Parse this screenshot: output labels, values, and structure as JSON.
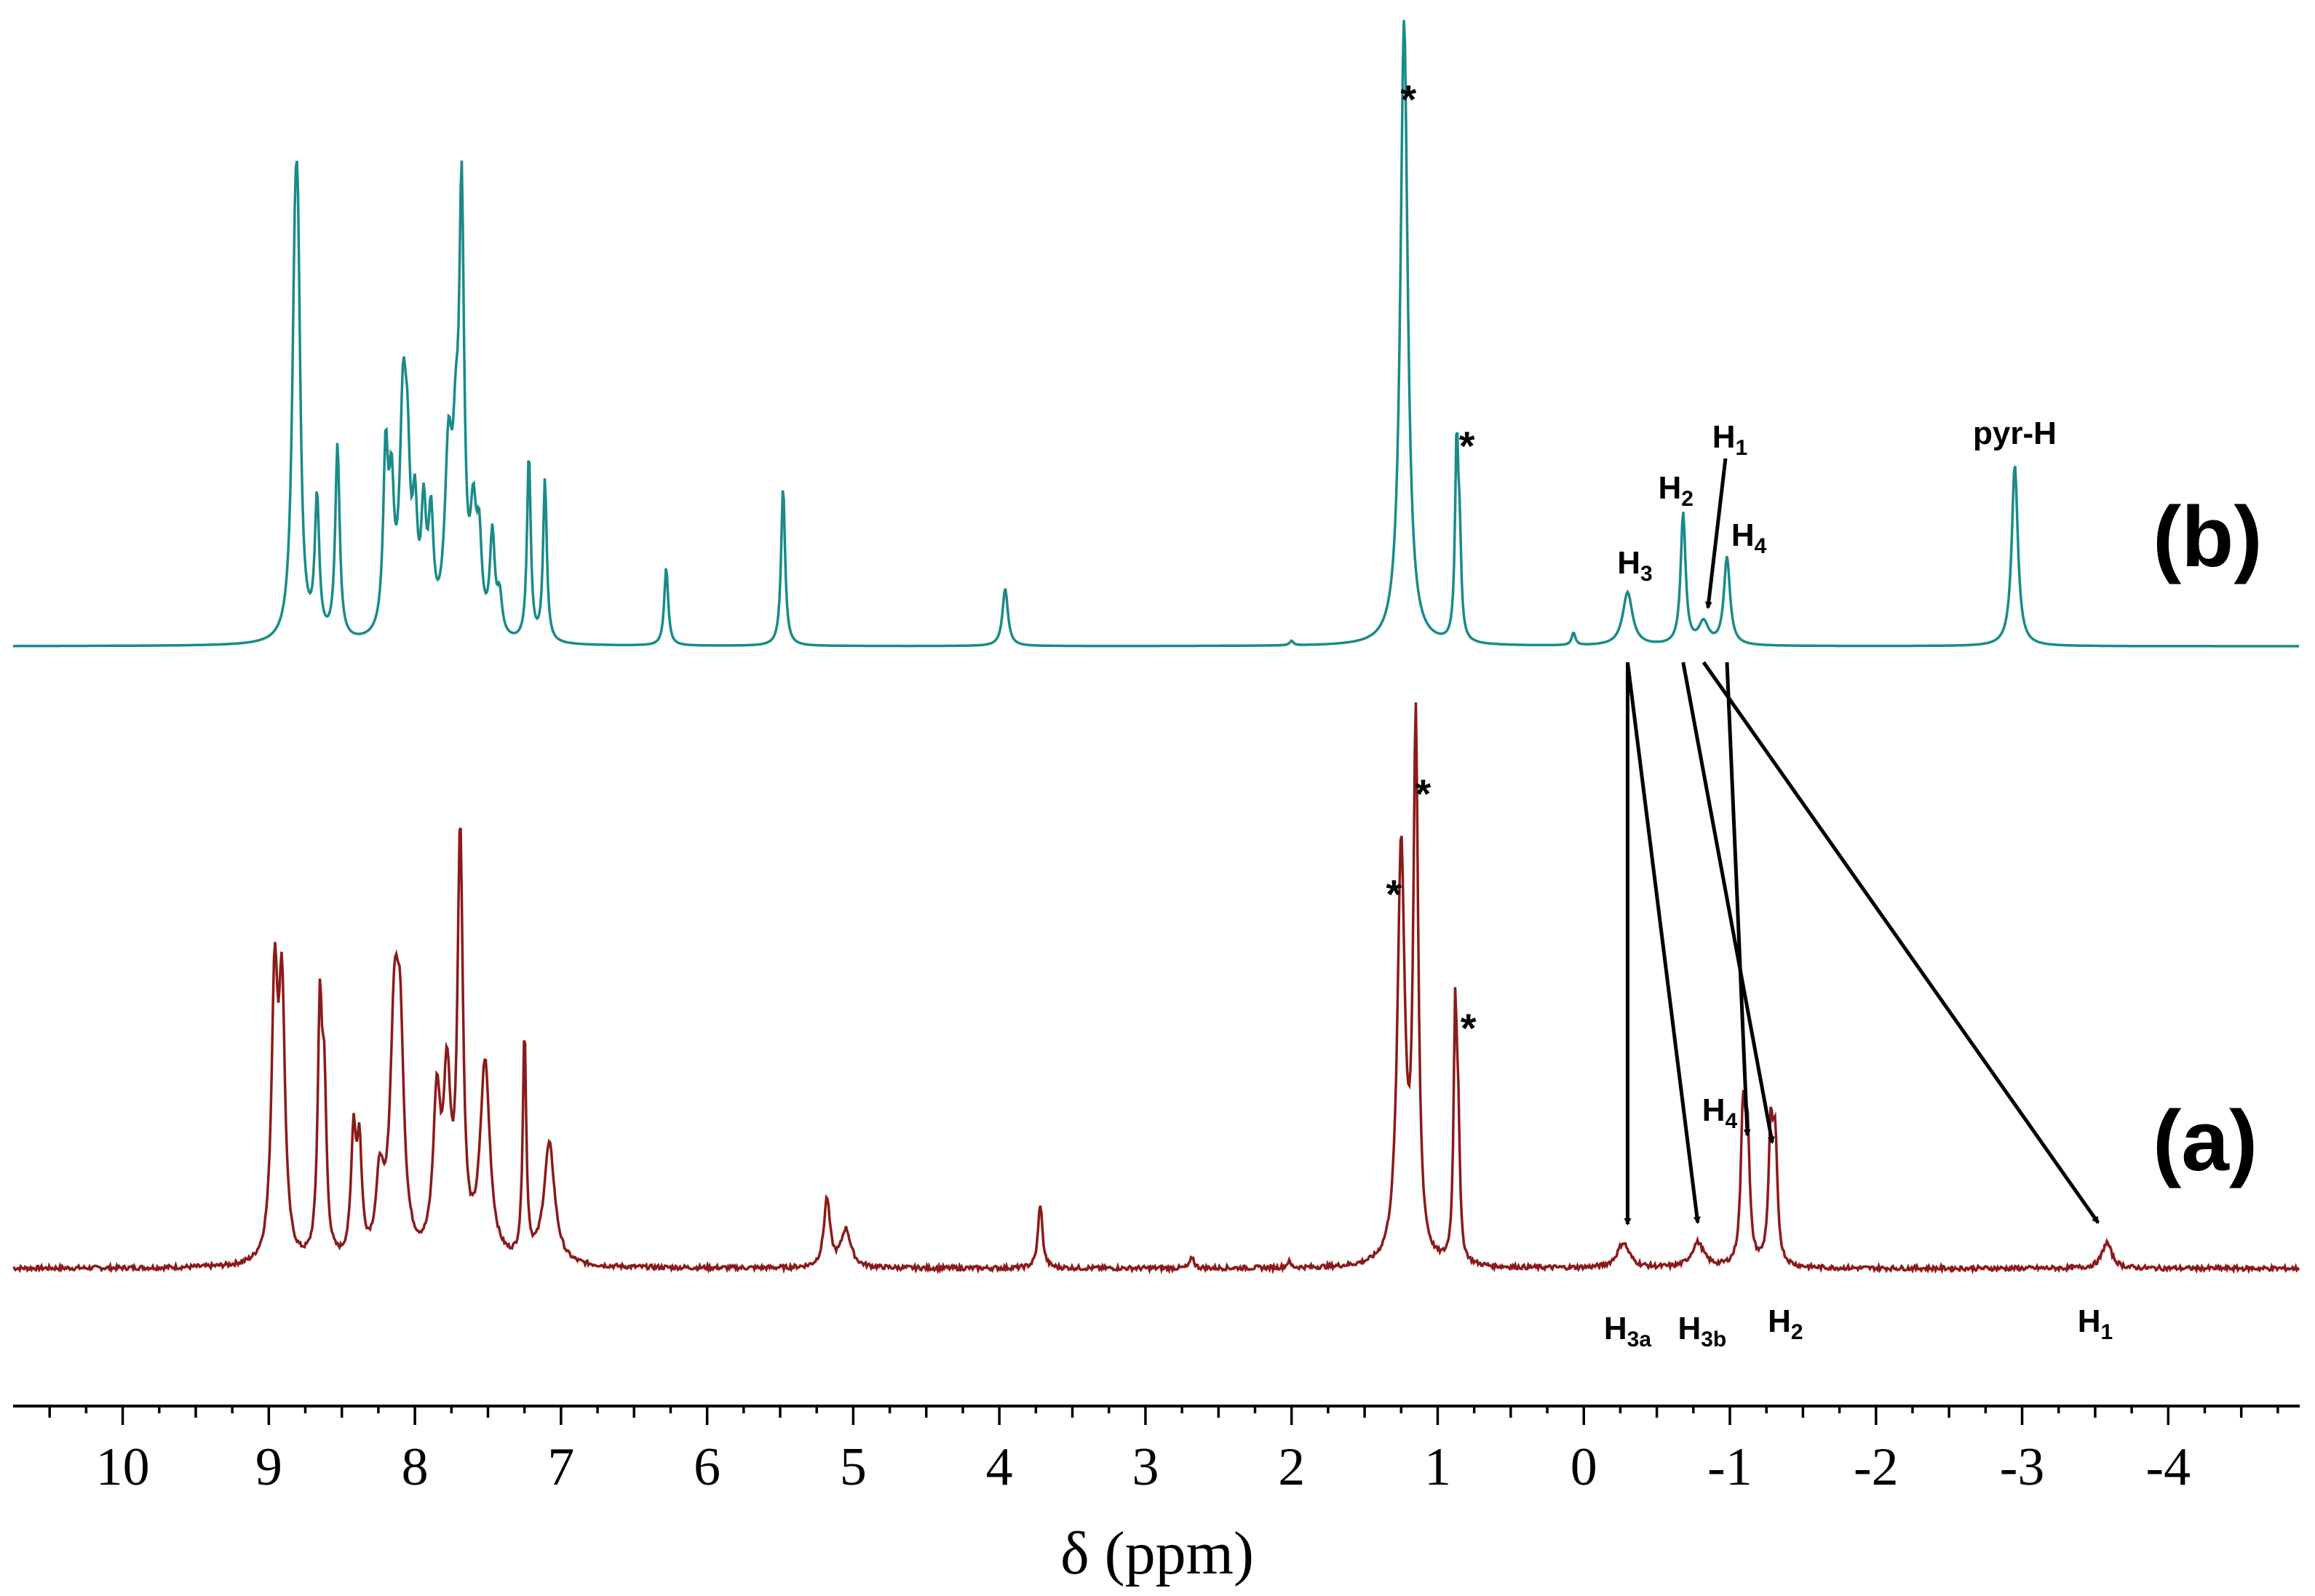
{
  "chart_data": {
    "type": "line",
    "title": "",
    "xlabel": "δ (ppm)",
    "ylabel": "",
    "xlim": [
      10.75,
      -4.9
    ],
    "x_direction": "reversed",
    "xticks": [
      10,
      9,
      8,
      7,
      6,
      5,
      4,
      3,
      2,
      1,
      0,
      -1,
      -2,
      -3,
      -4
    ],
    "xtick_labels": [
      "10",
      "9",
      "8",
      "7",
      "6",
      "5",
      "4",
      "3",
      "2",
      "1",
      "0",
      "-1",
      "-2",
      "-3",
      "-4"
    ],
    "grid": false,
    "series": [
      {
        "name": "(b)",
        "color": "#1a8a8a",
        "peaks": [
          {
            "x": 8.82,
            "h": 0.52,
            "w": 0.025
          },
          {
            "x": 8.8,
            "h": 0.4,
            "w": 0.02
          },
          {
            "x": 8.67,
            "h": 0.22,
            "w": 0.018
          },
          {
            "x": 8.53,
            "h": 0.31,
            "w": 0.018
          },
          {
            "x": 8.2,
            "h": 0.28,
            "w": 0.02
          },
          {
            "x": 8.16,
            "h": 0.2,
            "w": 0.02
          },
          {
            "x": 8.08,
            "h": 0.36,
            "w": 0.028
          },
          {
            "x": 8.05,
            "h": 0.18,
            "w": 0.02
          },
          {
            "x": 8.0,
            "h": 0.17,
            "w": 0.02
          },
          {
            "x": 7.94,
            "h": 0.18,
            "w": 0.02
          },
          {
            "x": 7.89,
            "h": 0.17,
            "w": 0.02
          },
          {
            "x": 7.77,
            "h": 0.27,
            "w": 0.03
          },
          {
            "x": 7.72,
            "h": 0.22,
            "w": 0.025
          },
          {
            "x": 7.68,
            "h": 0.66,
            "w": 0.02
          },
          {
            "x": 7.6,
            "h": 0.17,
            "w": 0.025
          },
          {
            "x": 7.56,
            "h": 0.13,
            "w": 0.02
          },
          {
            "x": 7.47,
            "h": 0.16,
            "w": 0.02
          },
          {
            "x": 7.42,
            "h": 0.06,
            "w": 0.02
          },
          {
            "x": 7.22,
            "h": 0.3,
            "w": 0.015
          },
          {
            "x": 7.11,
            "h": 0.26,
            "w": 0.015
          },
          {
            "x": 6.28,
            "h": 0.125,
            "w": 0.016
          },
          {
            "x": 5.48,
            "h": 0.255,
            "w": 0.016
          },
          {
            "x": 3.96,
            "h": 0.092,
            "w": 0.022
          },
          {
            "x": 2.0,
            "h": 0.007,
            "w": 0.015
          },
          {
            "x": 1.23,
            "h": 1.0,
            "w": 0.03
          },
          {
            "x": 0.87,
            "h": 0.31,
            "w": 0.013
          },
          {
            "x": 0.85,
            "h": 0.14,
            "w": 0.013
          },
          {
            "x": 0.07,
            "h": 0.02,
            "w": 0.015
          },
          {
            "x": -0.3,
            "h": 0.085,
            "w": 0.04
          },
          {
            "x": -0.68,
            "h": 0.21,
            "w": 0.02
          },
          {
            "x": -0.82,
            "h": 0.035,
            "w": 0.04
          },
          {
            "x": -0.98,
            "h": 0.14,
            "w": 0.025
          },
          {
            "x": -2.95,
            "h": 0.29,
            "w": 0.025
          }
        ]
      },
      {
        "name": "(a)",
        "color": "#8b1a1a",
        "peaks": [
          {
            "x": 8.96,
            "h": 0.36,
            "w": 0.025
          },
          {
            "x": 8.91,
            "h": 0.34,
            "w": 0.025
          },
          {
            "x": 8.65,
            "h": 0.32,
            "w": 0.018
          },
          {
            "x": 8.62,
            "h": 0.2,
            "w": 0.018
          },
          {
            "x": 8.42,
            "h": 0.16,
            "w": 0.02
          },
          {
            "x": 8.38,
            "h": 0.14,
            "w": 0.02
          },
          {
            "x": 8.24,
            "h": 0.1,
            "w": 0.03
          },
          {
            "x": 8.14,
            "h": 0.3,
            "w": 0.035
          },
          {
            "x": 8.1,
            "h": 0.24,
            "w": 0.03
          },
          {
            "x": 7.85,
            "h": 0.2,
            "w": 0.03
          },
          {
            "x": 7.78,
            "h": 0.22,
            "w": 0.03
          },
          {
            "x": 7.69,
            "h": 0.55,
            "w": 0.022
          },
          {
            "x": 7.52,
            "h": 0.26,
            "w": 0.04
          },
          {
            "x": 7.25,
            "h": 0.3,
            "w": 0.014
          },
          {
            "x": 7.08,
            "h": 0.16,
            "w": 0.045
          },
          {
            "x": 5.18,
            "h": 0.09,
            "w": 0.025
          },
          {
            "x": 5.05,
            "h": 0.05,
            "w": 0.04
          },
          {
            "x": 3.72,
            "h": 0.085,
            "w": 0.018
          },
          {
            "x": 2.68,
            "h": 0.015,
            "w": 0.015
          },
          {
            "x": 2.02,
            "h": 0.008,
            "w": 0.015
          },
          {
            "x": 1.25,
            "h": 0.55,
            "w": 0.03
          },
          {
            "x": 1.15,
            "h": 0.7,
            "w": 0.02
          },
          {
            "x": 0.88,
            "h": 0.32,
            "w": 0.013
          },
          {
            "x": 0.86,
            "h": 0.16,
            "w": 0.013
          },
          {
            "x": -0.27,
            "h": 0.033,
            "w": 0.05
          },
          {
            "x": -0.78,
            "h": 0.033,
            "w": 0.05
          },
          {
            "x": -1.09,
            "h": 0.19,
            "w": 0.018
          },
          {
            "x": -1.12,
            "h": 0.16,
            "w": 0.018
          },
          {
            "x": -1.28,
            "h": 0.17,
            "w": 0.018
          },
          {
            "x": -1.31,
            "h": 0.15,
            "w": 0.018
          },
          {
            "x": -3.58,
            "h": 0.034,
            "w": 0.04
          }
        ]
      }
    ],
    "stars_b": [
      1.2,
      0.8
    ],
    "stars_a": [
      1.3,
      1.1,
      0.79
    ],
    "labels_b": [
      {
        "key": "H3",
        "text": "H",
        "sub": "3",
        "x": -0.35
      },
      {
        "key": "H2",
        "text": "H",
        "sub": "2",
        "x": -0.63
      },
      {
        "key": "H1",
        "text": "H",
        "sub": "1",
        "x": -1.0
      },
      {
        "key": "H4",
        "text": "H",
        "sub": "4",
        "x": -1.13
      },
      {
        "key": "pyr",
        "text": "pyr-H",
        "sub": "",
        "x": -2.95
      }
    ],
    "labels_a": [
      {
        "key": "H3a",
        "text": "H",
        "sub": "3a",
        "x": -0.3
      },
      {
        "key": "H3b",
        "text": "H",
        "sub": "3b",
        "x": -0.81
      },
      {
        "key": "H4",
        "text": "H",
        "sub": "4",
        "x": -0.93
      },
      {
        "key": "H2",
        "text": "H",
        "sub": "2",
        "x": -1.38
      },
      {
        "key": "H1",
        "text": "H",
        "sub": "1",
        "x": -3.5
      }
    ],
    "arrows": [
      {
        "from": -0.3,
        "to": -0.3
      },
      {
        "from": -0.3,
        "to": -0.78
      },
      {
        "from": -0.68,
        "to": -1.29
      },
      {
        "from": -0.98,
        "to": -1.12
      },
      {
        "from": -0.82,
        "to": -3.52
      },
      {
        "from": -0.97,
        "to": -0.85
      }
    ],
    "panel_labels": [
      "(b)",
      "(a)"
    ]
  }
}
